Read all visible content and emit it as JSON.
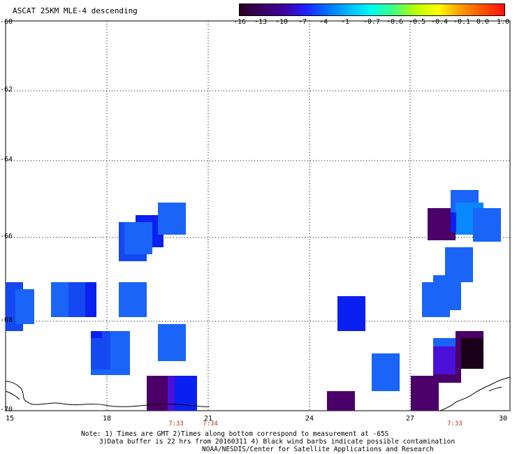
{
  "title": "ASCAT 25KM MLE-4 descending",
  "colorbar": {
    "labels": [
      "-16",
      "-13",
      "-10",
      "-7",
      "-4",
      "-1",
      "-0.7",
      "-0.6",
      "-0.5",
      "-0.4",
      "-0.1",
      "0.0",
      "1.0"
    ],
    "colors": [
      "#2a0020",
      "#3a0060",
      "#4000a0",
      "#2020ff",
      "#0070ff",
      "#00c0ff",
      "#00ffee",
      "#40ff80",
      "#c0ff00",
      "#ffff00",
      "#ffa000",
      "#ff5000",
      "#ff1010"
    ]
  },
  "axes": {
    "lat_labels": [
      "-60",
      "-62",
      "-64",
      "-66",
      "-68",
      "-70"
    ],
    "lon_labels": [
      "15",
      "18",
      "21",
      "24",
      "27",
      "30"
    ]
  },
  "times": [
    "7:33",
    "7:34",
    "7:33"
  ],
  "notes": [
    "Note: 1) Times are GMT 2)Times along bottom correspond to measurement at -65S",
    "3)Data buffer is 22 hrs from 20160311 4) Black wind barbs indicate possible contamination",
    "NOAA/NESDIS/Center for Satellite Applications and Research"
  ],
  "colors": {
    "dark_purple": "#4a0068",
    "black_purple": "#1a0018",
    "violet": "#4a10d8",
    "blue": "#0a20f0",
    "mid_blue": "#1448f0",
    "light_blue": "#1a64f8",
    "sky_blue": "#0a88ff",
    "time_red": "#b0301c"
  }
}
